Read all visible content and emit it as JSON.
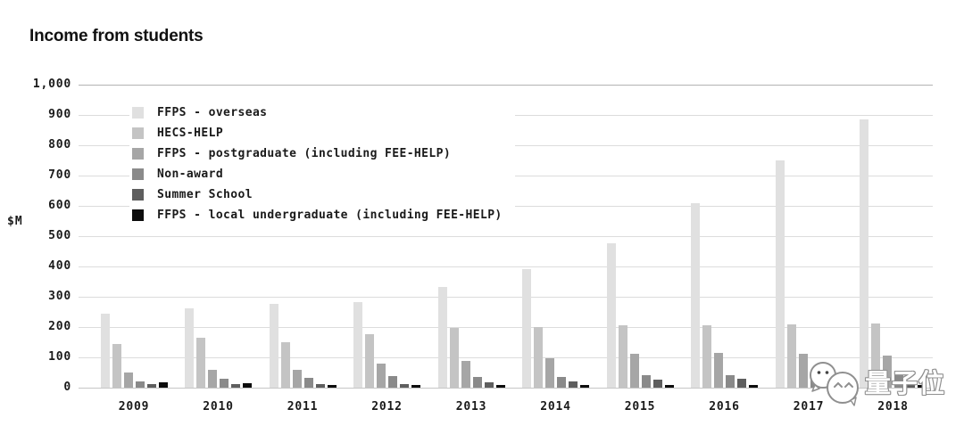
{
  "title": "Income from students",
  "y_axis": {
    "unit_label": "$M",
    "ticks": [
      {
        "label": "1,000",
        "value": 1000
      },
      {
        "label": "900",
        "value": 900
      },
      {
        "label": "800",
        "value": 800
      },
      {
        "label": "700",
        "value": 700
      },
      {
        "label": "600",
        "value": 600
      },
      {
        "label": "500",
        "value": 500
      },
      {
        "label": "400",
        "value": 400
      },
      {
        "label": "300",
        "value": 300
      },
      {
        "label": "200",
        "value": 200
      },
      {
        "label": "100",
        "value": 100
      },
      {
        "label": "0",
        "value": 0
      }
    ]
  },
  "chart_data": {
    "type": "bar",
    "title": "Income from students",
    "xlabel": "",
    "ylabel": "$M",
    "ylim": [
      0,
      1000
    ],
    "grid": "horizontal gridlines every 100",
    "legend_position": "top-left inside plot area",
    "categories": [
      "2009",
      "2010",
      "2011",
      "2012",
      "2013",
      "2014",
      "2015",
      "2016",
      "2017",
      "2018"
    ],
    "series": [
      {
        "name": "FFPS - overseas",
        "color": "#e0e0e0",
        "values": [
          245,
          263,
          277,
          283,
          333,
          390,
          477,
          610,
          750,
          884
        ]
      },
      {
        "name": "HECS-HELP",
        "color": "#c4c4c4",
        "values": [
          143,
          165,
          150,
          177,
          196,
          201,
          206,
          206,
          210,
          213
        ]
      },
      {
        "name": "FFPS - postgraduate (including FEE-HELP)",
        "color": "#a6a6a6",
        "values": [
          50,
          60,
          60,
          79,
          87,
          97,
          111,
          115,
          113,
          107
        ]
      },
      {
        "name": "Non-award",
        "color": "#8a8a8a",
        "values": [
          22,
          30,
          33,
          38,
          35,
          36,
          41,
          42,
          45,
          40
        ]
      },
      {
        "name": "Summer School",
        "color": "#5e5e5e",
        "values": [
          11,
          11,
          12,
          12,
          17,
          22,
          26,
          30,
          20,
          20
        ]
      },
      {
        "name": "FFPS - local undergraduate (including FEE-HELP)",
        "color": "#0d0d0d",
        "values": [
          18,
          15,
          10,
          10,
          10,
          9,
          8,
          8,
          8,
          8
        ]
      }
    ]
  },
  "watermark": {
    "text": "量子位",
    "icon": "chat-bubbles-icon"
  }
}
